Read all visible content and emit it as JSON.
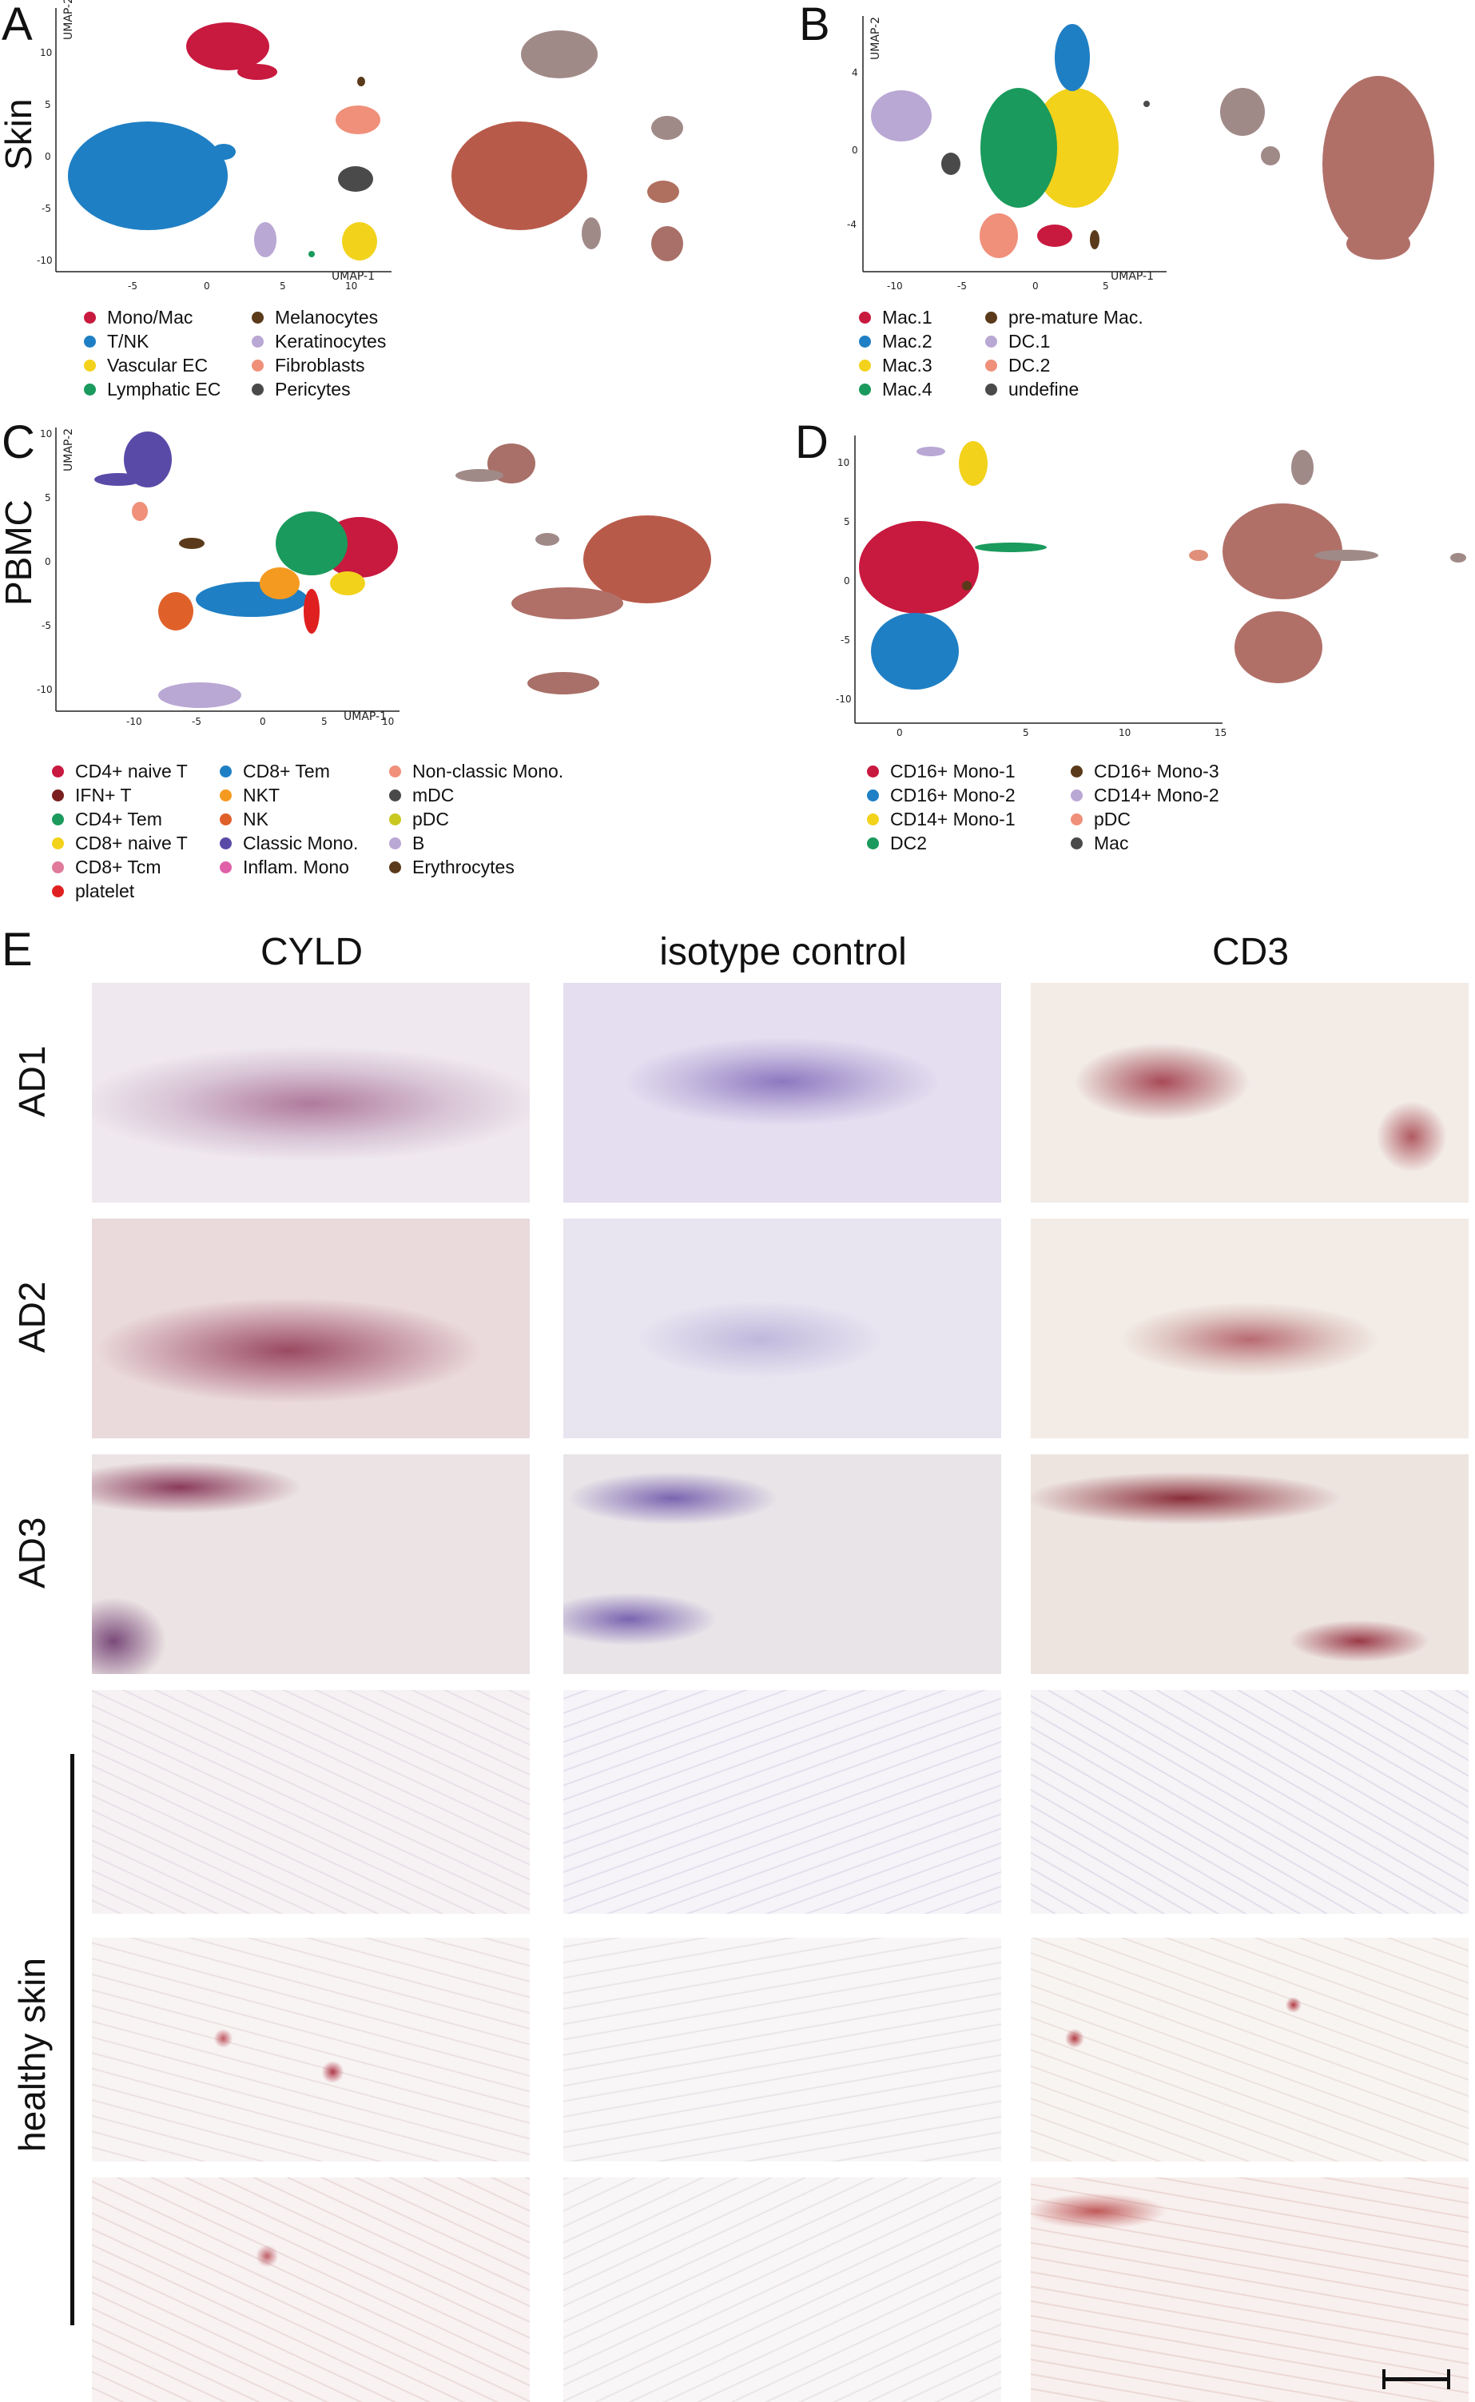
{
  "panels": {
    "A": {
      "letter": "A",
      "row_label": "Skin",
      "xaxis": "UMAP-1",
      "yaxis": "UMAP-2",
      "xticks": [
        "-5",
        "0",
        "5",
        "10"
      ],
      "yticks": [
        "10",
        "5",
        "0",
        "-5",
        "-10"
      ],
      "legend": [
        {
          "label": "Mono/Mac",
          "color": "#c8193f"
        },
        {
          "label": "T/NK",
          "color": "#1f7fc4"
        },
        {
          "label": "Vascular EC",
          "color": "#f2d21b"
        },
        {
          "label": "Lymphatic EC",
          "color": "#1a9a5c"
        },
        {
          "label": "Melanocytes",
          "color": "#5a3a1a"
        },
        {
          "label": "Keratinocytes",
          "color": "#b9a7d4"
        },
        {
          "label": "Fibroblasts",
          "color": "#f0907a"
        },
        {
          "label": "Pericytes",
          "color": "#4a4a4a"
        }
      ]
    },
    "B": {
      "letter": "B",
      "xaxis": "UMAP-1",
      "yaxis": "UMAP-2",
      "xticks": [
        "-10",
        "-5",
        "0",
        "5"
      ],
      "yticks": [
        "4",
        "0",
        "-4"
      ],
      "legend": [
        {
          "label": "Mac.1",
          "color": "#c8193f"
        },
        {
          "label": "Mac.2",
          "color": "#1f7fc4"
        },
        {
          "label": "Mac.3",
          "color": "#f2d21b"
        },
        {
          "label": "Mac.4",
          "color": "#1a9a5c"
        },
        {
          "label": "pre-mature Mac.",
          "color": "#5a3a1a"
        },
        {
          "label": "DC.1",
          "color": "#b9a7d4"
        },
        {
          "label": "DC.2",
          "color": "#f0907a"
        },
        {
          "label": "undefine",
          "color": "#4a4a4a"
        }
      ]
    },
    "C": {
      "letter": "C",
      "row_label": "PBMC",
      "xaxis": "UMAP-1",
      "yaxis": "UMAP-2",
      "xticks": [
        "-10",
        "-5",
        "0",
        "5",
        "10"
      ],
      "yticks": [
        "10",
        "5",
        "0",
        "-5",
        "-10"
      ],
      "legend": [
        {
          "label": "CD4+ naive T",
          "color": "#c8193f"
        },
        {
          "label": "IFN+ T",
          "color": "#7a1f1f"
        },
        {
          "label": "CD4+ Tem",
          "color": "#1a9a5c"
        },
        {
          "label": "CD8+ naive T",
          "color": "#f2d21b"
        },
        {
          "label": "CD8+ Tcm",
          "color": "#e07a9a"
        },
        {
          "label": "platelet",
          "color": "#e02020"
        },
        {
          "label": "CD8+ Tem",
          "color": "#1f7fc4"
        },
        {
          "label": "NKT",
          "color": "#f59a20"
        },
        {
          "label": "NK",
          "color": "#e0602a"
        },
        {
          "label": "Classic Mono.",
          "color": "#5a4aa8"
        },
        {
          "label": "Inflam. Mono",
          "color": "#e060a8"
        },
        {
          "label": "Non-classic Mono.",
          "color": "#f0907a"
        },
        {
          "label": "mDC",
          "color": "#4a4a4a"
        },
        {
          "label": "pDC",
          "color": "#c8c820"
        },
        {
          "label": "B",
          "color": "#b9a7d4"
        },
        {
          "label": "Erythrocytes",
          "color": "#5a3a1a"
        }
      ]
    },
    "D": {
      "letter": "D",
      "xticks": [
        "0",
        "5",
        "10",
        "15"
      ],
      "yticks": [
        "10",
        "5",
        "0",
        "-5",
        "-10"
      ],
      "legend": [
        {
          "label": "CD16+ Mono-1",
          "color": "#c8193f"
        },
        {
          "label": "CD16+ Mono-2",
          "color": "#1f7fc4"
        },
        {
          "label": "CD14+ Mono-1",
          "color": "#f2d21b"
        },
        {
          "label": "DC2",
          "color": "#1a9a5c"
        },
        {
          "label": "CD16+ Mono-3",
          "color": "#5a3a1a"
        },
        {
          "label": "CD14+ Mono-2",
          "color": "#b9a7d4"
        },
        {
          "label": "pDC",
          "color": "#f0907a"
        },
        {
          "label": "Mac",
          "color": "#4a4a4a"
        }
      ]
    },
    "E": {
      "letter": "E",
      "columns": [
        "CYLD",
        "isotype control",
        "CD3"
      ],
      "rows": [
        "AD1",
        "AD2",
        "AD3"
      ],
      "group_label": "healthy skin"
    }
  },
  "colors": {
    "grey_points": "#9a9a9a",
    "red_points": "#c0392b",
    "stain_bg": "#f4eef0",
    "brown_stain": "#9a2e3a",
    "hematoxylin": "#7060b0"
  }
}
